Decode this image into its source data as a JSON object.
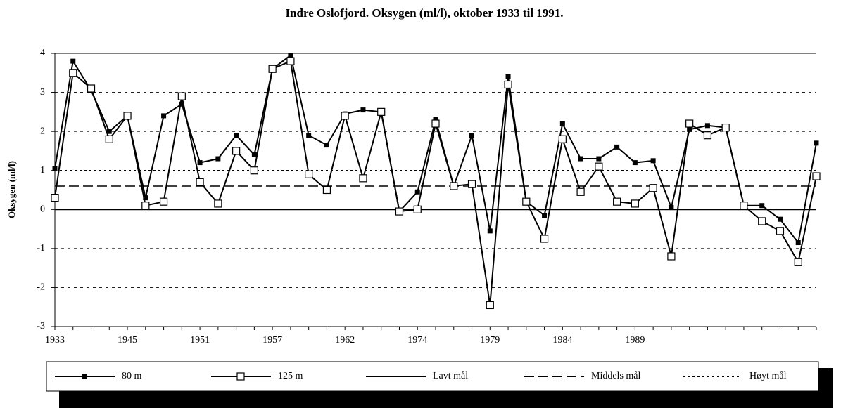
{
  "chart_data": {
    "type": "line",
    "title": "Indre Oslofjord. Oksygen (ml/l), oktober 1933 til 1991.",
    "y_label": "Oksygen (ml/l)",
    "categories": [
      "1933",
      null,
      null,
      null,
      "1945",
      null,
      null,
      null,
      "1951",
      null,
      null,
      null,
      "1957",
      null,
      null,
      null,
      "1962",
      null,
      null,
      null,
      "1974",
      null,
      null,
      null,
      "1979",
      null,
      null,
      null,
      "1984",
      null,
      null,
      null,
      "1989",
      null,
      null,
      null,
      null,
      null,
      null,
      null,
      null,
      null,
      null
    ],
    "series": [
      {
        "name": "80 m",
        "color": "#000000",
        "marker": "filled-square",
        "values": [
          1.05,
          3.8,
          3.05,
          2.0,
          2.4,
          0.3,
          2.4,
          2.7,
          1.2,
          1.3,
          1.9,
          1.4,
          3.6,
          3.95,
          1.9,
          1.65,
          2.45,
          2.55,
          2.5,
          -0.05,
          0.45,
          2.3,
          0.6,
          1.9,
          -0.55,
          3.4,
          0.2,
          -0.15,
          2.2,
          1.3,
          1.3,
          1.6,
          1.2,
          1.25,
          0.05,
          2.05,
          2.15,
          2.1,
          0.1,
          0.1,
          -0.25,
          -0.85,
          1.7
        ]
      },
      {
        "name": "125 m",
        "color": "#000000",
        "marker": "open-square",
        "values": [
          0.3,
          3.5,
          3.1,
          1.8,
          2.4,
          0.1,
          0.2,
          2.9,
          0.7,
          0.15,
          1.5,
          1.0,
          3.6,
          3.8,
          0.9,
          0.5,
          2.4,
          0.8,
          2.5,
          -0.05,
          0.0,
          2.2,
          0.6,
          0.65,
          -2.45,
          3.2,
          0.2,
          -0.75,
          1.8,
          0.45,
          1.1,
          0.2,
          0.15,
          0.55,
          -1.2,
          2.2,
          1.9,
          2.1,
          0.1,
          -0.3,
          -0.55,
          -1.35,
          0.85
        ]
      }
    ],
    "reference_lines": [
      {
        "name": "Lavt mål",
        "value": 0,
        "style": "solid",
        "color": "#000000"
      },
      {
        "name": "Middels mål",
        "value": 0.6,
        "style": "dashed",
        "color": "#000000"
      },
      {
        "name": "Høyt mål",
        "value": 1,
        "style": "dotted",
        "color": "#000000"
      }
    ],
    "ylim": [
      -3,
      4
    ],
    "yticks": [
      -3,
      -2,
      -1,
      0,
      1,
      2,
      3,
      4
    ],
    "grid": true,
    "legend": "bottom"
  }
}
